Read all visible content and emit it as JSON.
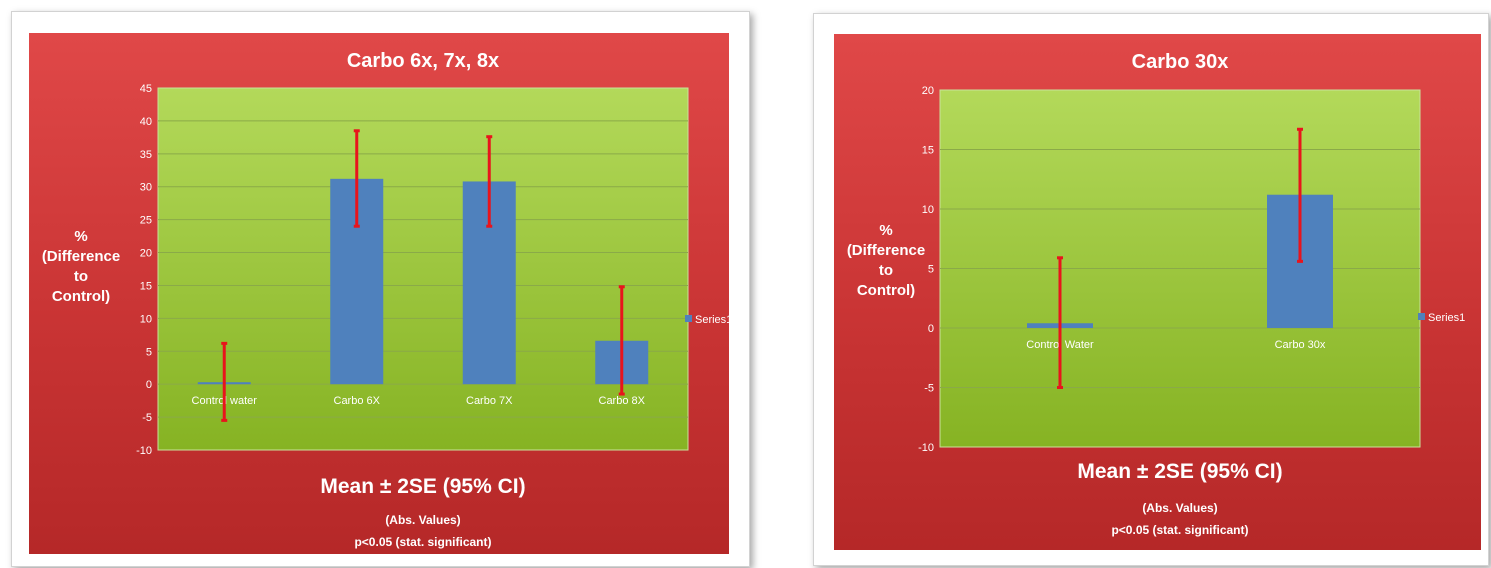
{
  "colors": {
    "panel_top": "#e04848",
    "panel_bottom": "#b52828",
    "plot_top": "#b3d95a",
    "plot_bottom": "#86b323",
    "bar": "#4f81bd",
    "error_bar": "#e8141c",
    "gridline": "#8aaa48"
  },
  "chart_data": [
    {
      "type": "bar",
      "title": "Carbo 6x, 7x, 8x",
      "ylabel_lines": [
        "%",
        "(Difference",
        "to",
        "Control)"
      ],
      "xlabel": "Mean ± 2SE  (95% CI)",
      "notes": [
        "(Abs. Values)",
        "p<0.05 (stat. significant)"
      ],
      "categories": [
        "Control water",
        "Carbo 6X",
        "Carbo 7X",
        "Carbo 8X"
      ],
      "series": [
        {
          "name": "Series1",
          "values": [
            0.3,
            31.2,
            30.8,
            6.6
          ],
          "error_low": [
            -5.5,
            24.0,
            24.0,
            -1.5
          ],
          "error_high": [
            6.2,
            38.5,
            37.6,
            14.8
          ]
        }
      ],
      "ylim": [
        -10,
        45
      ],
      "yticks": [
        45,
        40,
        35,
        30,
        25,
        20,
        15,
        10,
        5,
        0,
        -5,
        -10
      ],
      "grid": true,
      "legend": "right"
    },
    {
      "type": "bar",
      "title": "Carbo 30x",
      "ylabel_lines": [
        "%",
        "(Difference",
        "to",
        "Control)"
      ],
      "xlabel": "Mean ± 2SE  (95% CI)",
      "notes": [
        "(Abs. Values)",
        "p<0.05 (stat. significant)"
      ],
      "categories": [
        "Control Water",
        "Carbo 30x"
      ],
      "series": [
        {
          "name": "Series1",
          "values": [
            0.4,
            11.2
          ],
          "error_low": [
            -5.0,
            5.6
          ],
          "error_high": [
            5.9,
            16.7
          ]
        }
      ],
      "ylim": [
        -10,
        20
      ],
      "yticks": [
        20,
        15,
        10,
        5,
        0,
        -5,
        -10
      ],
      "grid": true,
      "legend": "right"
    }
  ]
}
